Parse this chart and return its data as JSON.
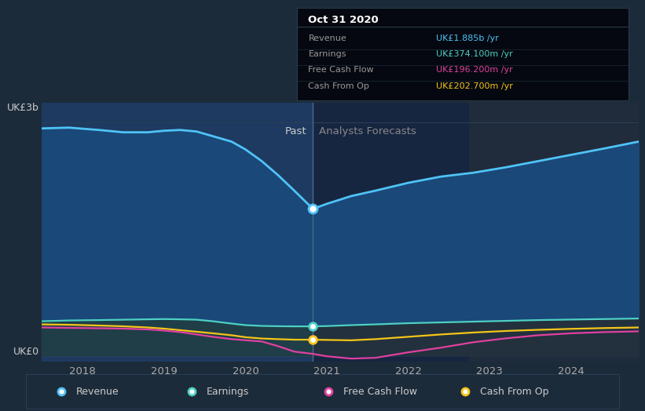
{
  "bg_color": "#1c2b3a",
  "chart_bg_color": "#1c2b3a",
  "divider_x": 2020.83,
  "x_min": 2017.5,
  "x_max": 2024.83,
  "y_min": -0.08,
  "y_max": 3.25,
  "grid_color": "#2a3f55",
  "revenue_color": "#4fc3f7",
  "earnings_color": "#4dd0c4",
  "fcf_color": "#e040a0",
  "cfop_color": "#f5c518",
  "revenue_fill_color": "#1e4070",
  "past_fill_color": "#1e3560",
  "forecast_fill_below_revenue": "#172a48",
  "earnings_fill_color": "#1e4060",
  "grey_fill_color": "#3a4a55",
  "revenue_x": [
    2017.5,
    2017.83,
    2018.2,
    2018.5,
    2018.8,
    2019.0,
    2019.2,
    2019.4,
    2019.6,
    2019.83,
    2020.0,
    2020.2,
    2020.4,
    2020.6,
    2020.83,
    2021.0,
    2021.3,
    2021.6,
    2022.0,
    2022.4,
    2022.8,
    2023.2,
    2023.6,
    2024.0,
    2024.4,
    2024.83
  ],
  "revenue_y": [
    2.92,
    2.93,
    2.9,
    2.87,
    2.87,
    2.89,
    2.9,
    2.88,
    2.82,
    2.75,
    2.65,
    2.5,
    2.32,
    2.12,
    1.885,
    1.95,
    2.05,
    2.12,
    2.22,
    2.3,
    2.35,
    2.42,
    2.5,
    2.58,
    2.66,
    2.75
  ],
  "earnings_x": [
    2017.5,
    2017.83,
    2018.2,
    2018.5,
    2018.8,
    2019.0,
    2019.2,
    2019.4,
    2019.6,
    2019.83,
    2020.0,
    2020.2,
    2020.4,
    2020.6,
    2020.83,
    2021.0,
    2021.3,
    2021.6,
    2022.0,
    2022.4,
    2022.8,
    2023.2,
    2023.6,
    2024.0,
    2024.4,
    2024.83
  ],
  "earnings_y": [
    0.44,
    0.45,
    0.455,
    0.46,
    0.465,
    0.468,
    0.465,
    0.46,
    0.44,
    0.41,
    0.39,
    0.38,
    0.376,
    0.374,
    0.374,
    0.378,
    0.39,
    0.4,
    0.415,
    0.425,
    0.435,
    0.445,
    0.455,
    0.462,
    0.468,
    0.475
  ],
  "fcf_x": [
    2017.5,
    2017.83,
    2018.2,
    2018.5,
    2018.8,
    2019.0,
    2019.2,
    2019.4,
    2019.6,
    2019.83,
    2020.0,
    2020.2,
    2020.4,
    2020.6,
    2020.83,
    2021.0,
    2021.3,
    2021.6,
    2022.0,
    2022.4,
    2022.8,
    2023.2,
    2023.6,
    2024.0,
    2024.4,
    2024.83
  ],
  "fcf_y": [
    0.36,
    0.355,
    0.35,
    0.345,
    0.335,
    0.32,
    0.3,
    0.27,
    0.24,
    0.21,
    0.196,
    0.18,
    0.12,
    0.05,
    0.02,
    -0.01,
    -0.04,
    -0.03,
    0.04,
    0.1,
    0.17,
    0.22,
    0.26,
    0.285,
    0.3,
    0.31
  ],
  "cfop_x": [
    2017.5,
    2017.83,
    2018.2,
    2018.5,
    2018.8,
    2019.0,
    2019.2,
    2019.4,
    2019.6,
    2019.83,
    2020.0,
    2020.2,
    2020.4,
    2020.6,
    2020.83,
    2021.0,
    2021.3,
    2021.6,
    2022.0,
    2022.4,
    2022.8,
    2023.2,
    2023.6,
    2024.0,
    2024.4,
    2024.83
  ],
  "cfop_y": [
    0.4,
    0.395,
    0.385,
    0.375,
    0.36,
    0.345,
    0.325,
    0.305,
    0.285,
    0.26,
    0.235,
    0.218,
    0.21,
    0.203,
    0.2027,
    0.2,
    0.195,
    0.21,
    0.24,
    0.27,
    0.295,
    0.315,
    0.33,
    0.342,
    0.352,
    0.36
  ],
  "tooltip_title": "Oct 31 2020",
  "tooltip_bg": "#050810",
  "tooltip_border": "#2a3a4a",
  "past_label": "Past",
  "forecast_label": "Analysts Forecasts",
  "past_label_color": "#cccccc",
  "forecast_label_color": "#888888",
  "ylabel_text": "UK£3b",
  "y0_text": "UK£0",
  "legend_items": [
    "Revenue",
    "Earnings",
    "Free Cash Flow",
    "Cash From Op"
  ],
  "legend_colors": [
    "#4fc3f7",
    "#4dd0c4",
    "#e040a0",
    "#f5c518"
  ],
  "xtick_values": [
    2018,
    2019,
    2020,
    2021,
    2022,
    2023,
    2024
  ]
}
